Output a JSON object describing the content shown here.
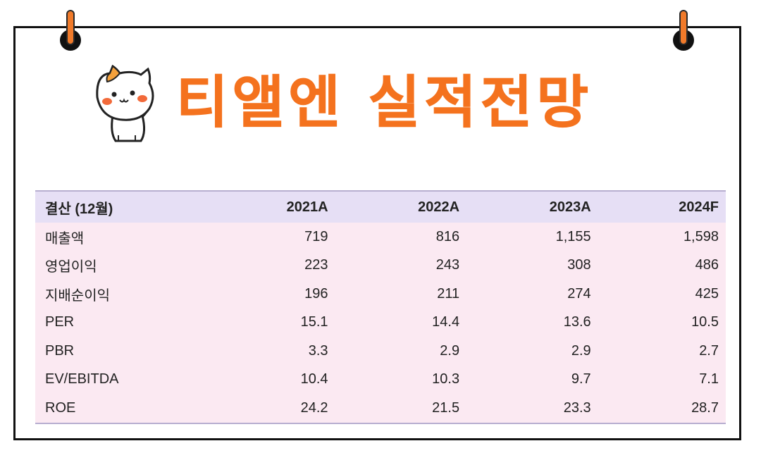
{
  "title": "티앨엔 실적전망",
  "colors": {
    "accent": "#f4721e",
    "header_bg": "#e6dff5",
    "row_bg": "#fbe9f2"
  },
  "icons": [
    "cat-mascot-icon",
    "pin-icon"
  ],
  "table": {
    "headers": [
      "결산 (12월)",
      "2021A",
      "2022A",
      "2023A",
      "2024F"
    ],
    "rows": [
      {
        "label": "매출액",
        "values": [
          "719",
          "816",
          "1,155",
          "1,598"
        ]
      },
      {
        "label": "영업이익",
        "values": [
          "223",
          "243",
          "308",
          "486"
        ]
      },
      {
        "label": "지배순이익",
        "values": [
          "196",
          "211",
          "274",
          "425"
        ]
      },
      {
        "label": "PER",
        "values": [
          "15.1",
          "14.4",
          "13.6",
          "10.5"
        ]
      },
      {
        "label": "PBR",
        "values": [
          "3.3",
          "2.9",
          "2.9",
          "2.7"
        ]
      },
      {
        "label": "EV/EBITDA",
        "values": [
          "10.4",
          "10.3",
          "9.7",
          "7.1"
        ]
      },
      {
        "label": "ROE",
        "values": [
          "24.2",
          "21.5",
          "23.3",
          "28.7"
        ]
      }
    ]
  }
}
